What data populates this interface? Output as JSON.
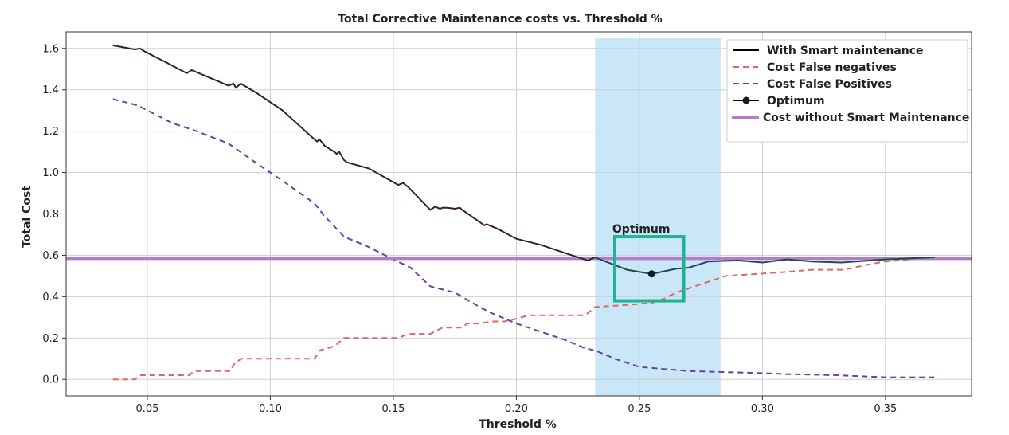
{
  "chart_data": {
    "type": "line",
    "title": "Total Corrective Maintenance costs vs. Threshold %",
    "xlabel": "Threshold %",
    "ylabel": "Total Cost",
    "xlim": [
      0.017,
      0.385
    ],
    "ylim": [
      -0.08,
      1.68
    ],
    "xticks": [
      0.05,
      0.1,
      0.15,
      0.2,
      0.25,
      0.3,
      0.35
    ],
    "xtick_labels": [
      "0.05",
      "0.10",
      "0.15",
      "0.20",
      "0.25",
      "0.30",
      "0.35"
    ],
    "yticks": [
      0.0,
      0.2,
      0.4,
      0.6,
      0.8,
      1.0,
      1.2,
      1.4,
      1.6
    ],
    "ytick_labels": [
      "0.0",
      "0.2",
      "0.4",
      "0.6",
      "0.8",
      "1.0",
      "1.2",
      "1.4",
      "1.6"
    ],
    "grid": true,
    "legend_position": "top-right",
    "highlight_band": {
      "x0": 0.232,
      "x1": 0.283,
      "color": "#bfe3f5"
    },
    "optimum_box": {
      "x0": 0.24,
      "x1": 0.268,
      "y0": 0.38,
      "y1": 0.69,
      "color": "#1db393"
    },
    "annotation": {
      "text": "Optimum",
      "x": 0.239,
      "y": 0.71
    },
    "series": [
      {
        "name": "With Smart maintenance",
        "style": "solid",
        "color": "#3a1f2a",
        "highlight_color": "#1f4a50",
        "x": [
          0.036,
          0.045,
          0.047,
          0.049,
          0.058,
          0.066,
          0.068,
          0.075,
          0.083,
          0.085,
          0.086,
          0.088,
          0.095,
          0.105,
          0.117,
          0.119,
          0.12,
          0.122,
          0.126,
          0.127,
          0.128,
          0.13,
          0.131,
          0.14,
          0.152,
          0.154,
          0.156,
          0.165,
          0.167,
          0.169,
          0.17,
          0.172,
          0.175,
          0.177,
          0.178,
          0.187,
          0.188,
          0.192,
          0.2,
          0.21,
          0.22,
          0.229,
          0.232,
          0.234,
          0.245,
          0.255,
          0.265,
          0.27,
          0.278,
          0.29,
          0.3,
          0.31,
          0.32,
          0.332,
          0.35,
          0.37
        ],
        "y": [
          1.615,
          1.595,
          1.6,
          1.585,
          1.53,
          1.48,
          1.495,
          1.46,
          1.42,
          1.43,
          1.41,
          1.43,
          1.38,
          1.3,
          1.17,
          1.15,
          1.16,
          1.13,
          1.1,
          1.09,
          1.1,
          1.06,
          1.05,
          1.02,
          0.94,
          0.95,
          0.93,
          0.82,
          0.835,
          0.825,
          0.83,
          0.83,
          0.825,
          0.83,
          0.82,
          0.745,
          0.75,
          0.73,
          0.68,
          0.65,
          0.61,
          0.575,
          0.59,
          0.58,
          0.53,
          0.51,
          0.535,
          0.54,
          0.57,
          0.575,
          0.565,
          0.58,
          0.57,
          0.565,
          0.58,
          0.59
        ]
      },
      {
        "name": "Cost False negatives",
        "style": "dashed",
        "color": "#e06666",
        "x": [
          0.036,
          0.045,
          0.047,
          0.058,
          0.067,
          0.069,
          0.084,
          0.085,
          0.088,
          0.11,
          0.118,
          0.12,
          0.126,
          0.13,
          0.14,
          0.152,
          0.156,
          0.165,
          0.17,
          0.178,
          0.18,
          0.185,
          0.19,
          0.195,
          0.199,
          0.205,
          0.228,
          0.23,
          0.232,
          0.245,
          0.255,
          0.26,
          0.265,
          0.27,
          0.28,
          0.285,
          0.298,
          0.31,
          0.32,
          0.333,
          0.345,
          0.35,
          0.36,
          0.37
        ],
        "y": [
          0.0,
          0.0,
          0.02,
          0.02,
          0.02,
          0.04,
          0.04,
          0.07,
          0.1,
          0.1,
          0.1,
          0.14,
          0.16,
          0.2,
          0.2,
          0.2,
          0.22,
          0.22,
          0.25,
          0.25,
          0.27,
          0.27,
          0.28,
          0.28,
          0.29,
          0.31,
          0.31,
          0.33,
          0.35,
          0.36,
          0.37,
          0.39,
          0.42,
          0.44,
          0.48,
          0.5,
          0.51,
          0.52,
          0.53,
          0.53,
          0.56,
          0.57,
          0.58,
          0.59
        ]
      },
      {
        "name": "Cost False Positives",
        "style": "dashed",
        "color": "#6b3fa6",
        "x": [
          0.036,
          0.046,
          0.06,
          0.07,
          0.083,
          0.095,
          0.105,
          0.118,
          0.122,
          0.13,
          0.14,
          0.15,
          0.157,
          0.165,
          0.175,
          0.185,
          0.19,
          0.2,
          0.21,
          0.22,
          0.228,
          0.232,
          0.24,
          0.25,
          0.26,
          0.27,
          0.285,
          0.3,
          0.31,
          0.33,
          0.35,
          0.37
        ],
        "y": [
          1.355,
          1.325,
          1.24,
          1.2,
          1.14,
          1.04,
          0.96,
          0.85,
          0.79,
          0.69,
          0.64,
          0.58,
          0.54,
          0.45,
          0.42,
          0.35,
          0.32,
          0.27,
          0.23,
          0.19,
          0.15,
          0.14,
          0.1,
          0.06,
          0.05,
          0.04,
          0.035,
          0.03,
          0.025,
          0.02,
          0.01,
          0.01
        ]
      },
      {
        "name": "Optimum",
        "style": "marker",
        "color": "#0d1b2a",
        "x": [
          0.255
        ],
        "y": [
          0.51
        ]
      },
      {
        "name": "Cost without Smart Maintenance",
        "style": "hline",
        "color": "#b57ad0",
        "x": [
          0.017,
          0.385
        ],
        "y": [
          0.585,
          0.585
        ]
      }
    ]
  }
}
